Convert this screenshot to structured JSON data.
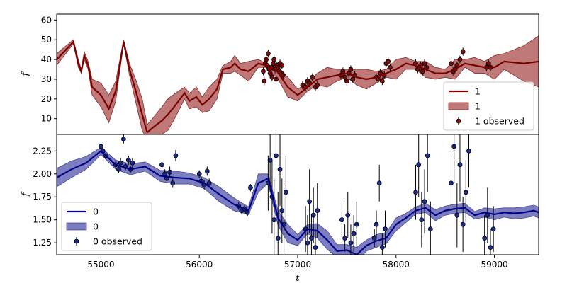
{
  "chart_data": [
    {
      "type": "line",
      "panel": "top",
      "ylabel": "f",
      "xlim": [
        54550,
        59450
      ],
      "ylim": [
        2,
        63
      ],
      "yticks": [
        10,
        20,
        30,
        40,
        50,
        60
      ],
      "grid": false,
      "legend_placement": "lower-right",
      "colors": {
        "line": "#7a0000",
        "band": "#b86a6a",
        "band_edge": "#8a2a2a",
        "points": "#7a0a0a"
      },
      "series": [
        {
          "name": "1",
          "kind": "mean",
          "x": [
            54550,
            54720,
            54770,
            54800,
            54830,
            54870,
            54910,
            55000,
            55080,
            55150,
            55230,
            55290,
            55360,
            55420,
            55470,
            55540,
            55620,
            55680,
            55760,
            55850,
            55900,
            55970,
            56030,
            56100,
            56180,
            56240,
            56320,
            56360,
            56420,
            56500,
            56600,
            56680,
            56720,
            56790,
            56900,
            57000,
            57100,
            57200,
            57300,
            57400,
            57500,
            57600,
            57700,
            57800,
            57900,
            58000,
            58100,
            58200,
            58300,
            58400,
            58500,
            58600,
            58700,
            58800,
            58900,
            59000,
            59100,
            59300,
            59450
          ],
          "values": [
            40,
            49,
            38,
            34,
            42,
            37,
            26,
            22,
            15,
            24,
            49,
            35,
            23,
            12,
            3,
            6,
            9,
            12,
            17,
            23,
            19,
            21,
            17,
            20,
            25,
            35,
            36,
            38,
            35,
            34,
            38,
            37,
            35,
            34,
            26,
            22,
            26,
            30,
            31,
            32,
            33,
            31,
            30,
            31,
            33,
            35,
            38,
            37,
            35,
            33,
            33,
            35,
            38,
            37,
            36,
            36,
            39,
            38,
            39
          ]
        },
        {
          "name": "1",
          "kind": "band",
          "x": [
            54550,
            54720,
            54770,
            54800,
            54830,
            54870,
            54910,
            55000,
            55080,
            55150,
            55230,
            55290,
            55360,
            55420,
            55470,
            55540,
            55620,
            55680,
            55760,
            55850,
            55900,
            55970,
            56030,
            56100,
            56180,
            56240,
            56320,
            56360,
            56420,
            56500,
            56600,
            56680,
            56720,
            56790,
            56900,
            57000,
            57100,
            57200,
            57300,
            57400,
            57500,
            57600,
            57700,
            57800,
            57900,
            58000,
            58100,
            58200,
            58300,
            58400,
            58500,
            58600,
            58700,
            58800,
            58900,
            59000,
            59100,
            59300,
            59450
          ],
          "halfwidth": [
            3,
            1,
            2,
            1,
            2,
            2,
            4,
            6,
            7,
            5,
            1,
            3,
            6,
            8,
            4,
            5,
            7,
            8,
            6,
            3,
            4,
            5,
            4,
            6,
            5,
            2,
            3,
            4,
            3,
            5,
            2,
            1,
            2,
            3,
            5,
            3,
            2,
            3,
            5,
            3,
            2,
            4,
            5,
            3,
            2,
            5,
            3,
            2,
            4,
            3,
            2,
            5,
            2,
            4,
            3,
            6,
            4,
            9,
            13
          ]
        },
        {
          "name": "1 observed",
          "kind": "observed",
          "x": [
            56650,
            56660,
            56670,
            56680,
            56690,
            56700,
            56710,
            56720,
            56730,
            56740,
            56750,
            56760,
            56770,
            56780,
            56790,
            56800,
            56810,
            56820,
            56830,
            56840,
            56850,
            57050,
            57080,
            57100,
            57120,
            57150,
            57180,
            57200,
            57440,
            57460,
            57480,
            57500,
            57520,
            57540,
            57560,
            57580,
            57800,
            57820,
            57840,
            57860,
            57880,
            57900,
            57920,
            57940,
            58200,
            58220,
            58240,
            58250,
            58270,
            58290,
            58310,
            58560,
            58580,
            58600,
            58620,
            58650,
            58680,
            58920,
            58940,
            58960
          ],
          "values": [
            34,
            29,
            38,
            40,
            37,
            43,
            35,
            33,
            36,
            31,
            38,
            40,
            35,
            30,
            37,
            36,
            34,
            38,
            33,
            37,
            32,
            27,
            26,
            29,
            28,
            31,
            26,
            27,
            32,
            34,
            31,
            29,
            33,
            35,
            30,
            32,
            31,
            30,
            33,
            29,
            32,
            38,
            39,
            36,
            38,
            35,
            36,
            37,
            34,
            38,
            36,
            38,
            34,
            35,
            37,
            40,
            44,
            36,
            38,
            36
          ],
          "err": [
            2,
            2,
            2,
            3,
            2,
            2,
            2,
            2,
            2,
            2,
            2,
            2,
            2,
            2,
            2,
            2,
            2,
            2,
            2,
            2,
            2,
            2,
            2,
            2,
            2,
            2,
            2,
            2,
            2,
            2,
            2,
            2,
            2,
            2,
            2,
            2,
            2,
            2,
            2,
            2,
            2,
            2,
            2,
            2,
            2,
            2,
            2,
            2,
            2,
            2,
            2,
            2,
            2,
            2,
            2,
            2,
            2,
            2,
            2,
            2
          ]
        }
      ],
      "legend": [
        "1",
        "1",
        "1 observed"
      ]
    },
    {
      "type": "line",
      "panel": "bottom",
      "xlabel": "t",
      "ylabel": "f",
      "xlim": [
        54550,
        59450
      ],
      "ylim": [
        1.12,
        2.43
      ],
      "xticks": [
        55000,
        56000,
        57000,
        58000,
        59000
      ],
      "xtick_labels": [
        "55000",
        "56000",
        "57000",
        "58000",
        "59000"
      ],
      "yticks": [
        1.25,
        1.5,
        1.75,
        2.0,
        2.25
      ],
      "ytick_labels": [
        "1.25",
        "1.50",
        "1.75",
        "2.00",
        "2.25"
      ],
      "grid": false,
      "legend_placement": "lower-left",
      "colors": {
        "line": "#00008b",
        "band": "#6f70b8",
        "band_edge": "#4a4a9a",
        "points": "#1a2a8a"
      },
      "series": [
        {
          "name": "0",
          "kind": "mean",
          "x": [
            54550,
            54700,
            54850,
            55000,
            55150,
            55300,
            55450,
            55600,
            55750,
            55900,
            56050,
            56200,
            56350,
            56500,
            56600,
            56700,
            56800,
            56900,
            57000,
            57100,
            57200,
            57300,
            57400,
            57500,
            57600,
            57700,
            57800,
            57900,
            58000,
            58100,
            58200,
            58300,
            58400,
            58500,
            58600,
            58700,
            58800,
            58900,
            59000,
            59100,
            59200,
            59300,
            59400,
            59450
          ],
          "values": [
            1.96,
            2.05,
            2.12,
            2.25,
            2.1,
            2.05,
            2.08,
            1.98,
            1.96,
            1.95,
            1.9,
            1.78,
            1.67,
            1.6,
            1.9,
            1.95,
            1.52,
            1.35,
            1.28,
            1.4,
            1.38,
            1.28,
            1.16,
            1.17,
            1.12,
            1.22,
            1.27,
            1.3,
            1.45,
            1.52,
            1.6,
            1.63,
            1.55,
            1.6,
            1.62,
            1.63,
            1.55,
            1.58,
            1.56,
            1.58,
            1.57,
            1.58,
            1.6,
            1.58
          ]
        },
        {
          "name": "0",
          "kind": "band",
          "x": [
            54550,
            54700,
            54850,
            55000,
            55150,
            55300,
            55450,
            55600,
            55750,
            55900,
            56050,
            56200,
            56350,
            56500,
            56600,
            56700,
            56800,
            56900,
            57000,
            57100,
            57200,
            57300,
            57400,
            57500,
            57600,
            57700,
            57800,
            57900,
            58000,
            58100,
            58200,
            58300,
            58400,
            58500,
            58600,
            58700,
            58800,
            58900,
            59000,
            59100,
            59200,
            59300,
            59400,
            59450
          ],
          "halfwidth": [
            0.1,
            0.09,
            0.07,
            0.04,
            0.05,
            0.06,
            0.05,
            0.06,
            0.07,
            0.06,
            0.06,
            0.08,
            0.07,
            0.04,
            0.1,
            0.05,
            0.08,
            0.1,
            0.06,
            0.05,
            0.08,
            0.1,
            0.07,
            0.06,
            0.08,
            0.06,
            0.07,
            0.06,
            0.07,
            0.05,
            0.04,
            0.05,
            0.06,
            0.05,
            0.05,
            0.05,
            0.04,
            0.05,
            0.06,
            0.05,
            0.06,
            0.06,
            0.06,
            0.06
          ]
        },
        {
          "name": "0 observed",
          "kind": "observed",
          "x": [
            55000,
            55020,
            55050,
            55150,
            55180,
            55200,
            55230,
            55250,
            55280,
            55300,
            55320,
            55620,
            55650,
            55670,
            55700,
            55730,
            55760,
            56000,
            56020,
            56050,
            56080,
            56100,
            56400,
            56430,
            56460,
            56490,
            56520,
            56700,
            56720,
            56740,
            56760,
            56780,
            56800,
            56820,
            56840,
            56860,
            56880,
            57080,
            57100,
            57120,
            57140,
            57160,
            57180,
            57200,
            57450,
            57480,
            57510,
            57540,
            57570,
            57600,
            57780,
            57800,
            57830,
            57860,
            57890,
            58200,
            58230,
            58260,
            58290,
            58320,
            58350,
            58560,
            58590,
            58620,
            58650,
            58680,
            58710,
            58740,
            58900,
            58930,
            58960,
            58990
          ],
          "values": [
            2.3,
            2.25,
            2.2,
            2.1,
            2.05,
            2.12,
            2.38,
            2.08,
            2.15,
            2.05,
            2.12,
            2.1,
            2.0,
            1.95,
            2.02,
            1.9,
            2.2,
            2.0,
            1.92,
            1.88,
            2.03,
            1.9,
            1.65,
            1.6,
            1.62,
            1.58,
            1.85,
            1.9,
            2.15,
            1.75,
            1.5,
            2.2,
            1.3,
            2.05,
            1.6,
            1.45,
            1.8,
            1.4,
            1.25,
            1.7,
            1.3,
            1.55,
            1.2,
            1.6,
            1.5,
            1.3,
            1.55,
            1.25,
            1.35,
            1.45,
            1.3,
            1.45,
            1.9,
            1.2,
            1.4,
            1.8,
            2.1,
            1.5,
            1.7,
            2.2,
            1.4,
            1.9,
            2.3,
            1.55,
            2.1,
            1.45,
            1.8,
            2.25,
            1.3,
            1.55,
            1.2,
            1.4
          ],
          "err": [
            0.03,
            0.04,
            0.04,
            0.04,
            0.04,
            0.05,
            0.05,
            0.04,
            0.05,
            0.04,
            0.05,
            0.05,
            0.05,
            0.05,
            0.06,
            0.05,
            0.06,
            0.04,
            0.05,
            0.05,
            0.05,
            0.05,
            0.04,
            0.04,
            0.04,
            0.04,
            0.04,
            0.3,
            0.35,
            0.4,
            0.45,
            0.35,
            0.5,
            0.4,
            0.35,
            0.45,
            0.4,
            0.25,
            0.3,
            0.35,
            0.25,
            0.3,
            0.2,
            0.3,
            0.2,
            0.15,
            0.25,
            0.2,
            0.2,
            0.25,
            0.1,
            0.15,
            0.2,
            0.15,
            0.2,
            0.3,
            0.35,
            0.3,
            0.35,
            0.4,
            0.3,
            0.3,
            0.4,
            0.35,
            0.4,
            0.3,
            0.35,
            0.4,
            0.25,
            0.3,
            0.2,
            0.25
          ]
        }
      ],
      "legend": [
        "0",
        "0",
        "0 observed"
      ]
    }
  ]
}
